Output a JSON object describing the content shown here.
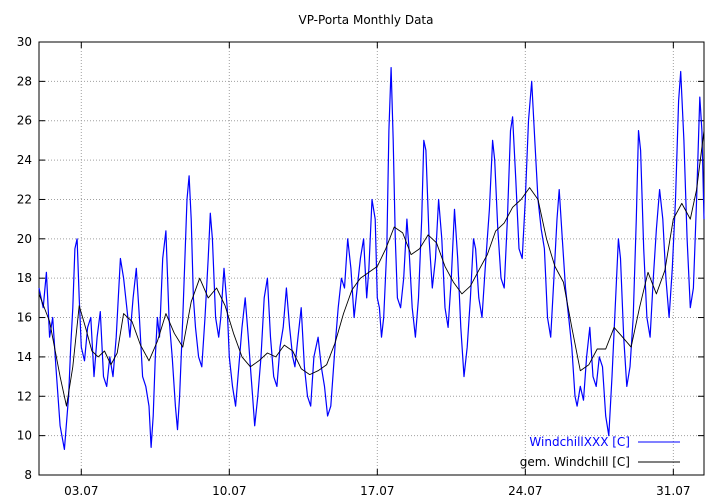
{
  "chart_data": {
    "type": "line",
    "title": "VP-Porta Monthly Data",
    "xlabel": "",
    "ylabel": "",
    "x_range_days": [
      1.0,
      32.45
    ],
    "ylim": [
      8,
      30
    ],
    "y_ticks": [
      8,
      10,
      12,
      14,
      16,
      18,
      20,
      22,
      24,
      26,
      28,
      30
    ],
    "x_ticks": [
      {
        "day": 3,
        "label": "03.07"
      },
      {
        "day": 10,
        "label": "10.07"
      },
      {
        "day": 17,
        "label": "17.07"
      },
      {
        "day": 24,
        "label": "24.07"
      },
      {
        "day": 31,
        "label": "31.07"
      }
    ],
    "grid": true,
    "legend_position": "bottom-right",
    "series": [
      {
        "name": "WindchillXXX [C]",
        "color": "#0000ff",
        "points": [
          [
            1.0,
            17.5
          ],
          [
            1.2,
            16.5
          ],
          [
            1.35,
            18.3
          ],
          [
            1.5,
            15.0
          ],
          [
            1.65,
            16.0
          ],
          [
            1.8,
            13.5
          ],
          [
            2.0,
            10.5
          ],
          [
            2.2,
            9.3
          ],
          [
            2.4,
            12.0
          ],
          [
            2.5,
            14.5
          ],
          [
            2.6,
            16.5
          ],
          [
            2.7,
            19.5
          ],
          [
            2.8,
            20.0
          ],
          [
            2.9,
            17.0
          ],
          [
            3.0,
            14.5
          ],
          [
            3.15,
            13.8
          ],
          [
            3.3,
            15.5
          ],
          [
            3.45,
            16.0
          ],
          [
            3.6,
            13.0
          ],
          [
            3.75,
            15.0
          ],
          [
            3.9,
            16.3
          ],
          [
            4.05,
            13.0
          ],
          [
            4.2,
            12.5
          ],
          [
            4.35,
            14.0
          ],
          [
            4.5,
            13.0
          ],
          [
            4.65,
            15.0
          ],
          [
            4.85,
            19.0
          ],
          [
            5.0,
            18.0
          ],
          [
            5.15,
            16.5
          ],
          [
            5.3,
            15.0
          ],
          [
            5.45,
            17.0
          ],
          [
            5.6,
            18.5
          ],
          [
            5.75,
            16.0
          ],
          [
            5.9,
            13.0
          ],
          [
            6.05,
            12.5
          ],
          [
            6.2,
            11.5
          ],
          [
            6.3,
            9.4
          ],
          [
            6.4,
            11.0
          ],
          [
            6.5,
            14.0
          ],
          [
            6.6,
            16.0
          ],
          [
            6.7,
            15.0
          ],
          [
            6.85,
            19.0
          ],
          [
            7.0,
            20.4
          ],
          [
            7.15,
            16.0
          ],
          [
            7.3,
            14.0
          ],
          [
            7.45,
            11.5
          ],
          [
            7.55,
            10.3
          ],
          [
            7.65,
            12.0
          ],
          [
            7.8,
            16.0
          ],
          [
            8.0,
            22.0
          ],
          [
            8.1,
            23.2
          ],
          [
            8.2,
            21.0
          ],
          [
            8.3,
            17.0
          ],
          [
            8.4,
            15.5
          ],
          [
            8.55,
            14.0
          ],
          [
            8.7,
            13.5
          ],
          [
            8.85,
            16.0
          ],
          [
            9.0,
            19.0
          ],
          [
            9.1,
            21.3
          ],
          [
            9.2,
            20.0
          ],
          [
            9.35,
            16.0
          ],
          [
            9.5,
            15.0
          ],
          [
            9.6,
            16.0
          ],
          [
            9.75,
            18.5
          ],
          [
            9.9,
            16.5
          ],
          [
            10.0,
            14.0
          ],
          [
            10.15,
            12.5
          ],
          [
            10.3,
            11.5
          ],
          [
            10.45,
            13.5
          ],
          [
            10.6,
            15.5
          ],
          [
            10.75,
            17.0
          ],
          [
            10.9,
            15.0
          ],
          [
            11.0,
            13.5
          ],
          [
            11.1,
            12.0
          ],
          [
            11.2,
            10.5
          ],
          [
            11.35,
            12.0
          ],
          [
            11.5,
            14.0
          ],
          [
            11.65,
            17.0
          ],
          [
            11.8,
            18.0
          ],
          [
            11.95,
            15.0
          ],
          [
            12.1,
            13.0
          ],
          [
            12.25,
            12.5
          ],
          [
            12.4,
            14.5
          ],
          [
            12.55,
            15.5
          ],
          [
            12.7,
            17.5
          ],
          [
            12.85,
            15.5
          ],
          [
            13.0,
            14.0
          ],
          [
            13.1,
            13.5
          ],
          [
            13.25,
            15.0
          ],
          [
            13.4,
            16.5
          ],
          [
            13.55,
            13.5
          ],
          [
            13.7,
            12.0
          ],
          [
            13.85,
            11.5
          ],
          [
            14.0,
            14.0
          ],
          [
            14.2,
            15.0
          ],
          [
            14.35,
            13.5
          ],
          [
            14.5,
            12.5
          ],
          [
            14.65,
            11.0
          ],
          [
            14.8,
            11.5
          ],
          [
            15.0,
            14.5
          ],
          [
            15.15,
            16.5
          ],
          [
            15.3,
            18.0
          ],
          [
            15.45,
            17.5
          ],
          [
            15.6,
            20.0
          ],
          [
            15.75,
            18.5
          ],
          [
            15.9,
            16.0
          ],
          [
            16.05,
            17.5
          ],
          [
            16.2,
            19.0
          ],
          [
            16.35,
            20.0
          ],
          [
            16.5,
            17.0
          ],
          [
            16.6,
            18.5
          ],
          [
            16.75,
            22.0
          ],
          [
            16.9,
            21.0
          ],
          [
            17.0,
            17.0
          ],
          [
            17.1,
            16.5
          ],
          [
            17.2,
            15.0
          ],
          [
            17.3,
            16.0
          ],
          [
            17.45,
            19.5
          ],
          [
            17.55,
            25.5
          ],
          [
            17.65,
            28.7
          ],
          [
            17.75,
            25.0
          ],
          [
            17.85,
            20.0
          ],
          [
            17.95,
            17.0
          ],
          [
            18.1,
            16.5
          ],
          [
            18.25,
            18.0
          ],
          [
            18.4,
            21.0
          ],
          [
            18.5,
            19.5
          ],
          [
            18.65,
            16.5
          ],
          [
            18.8,
            15.0
          ],
          [
            18.95,
            17.0
          ],
          [
            19.1,
            21.0
          ],
          [
            19.2,
            25.0
          ],
          [
            19.3,
            24.5
          ],
          [
            19.45,
            20.0
          ],
          [
            19.6,
            17.5
          ],
          [
            19.75,
            19.0
          ],
          [
            19.9,
            22.0
          ],
          [
            20.05,
            20.0
          ],
          [
            20.2,
            16.5
          ],
          [
            20.35,
            15.5
          ],
          [
            20.5,
            18.0
          ],
          [
            20.65,
            21.5
          ],
          [
            20.8,
            19.0
          ],
          [
            20.95,
            15.5
          ],
          [
            21.1,
            13.0
          ],
          [
            21.25,
            14.5
          ],
          [
            21.4,
            17.0
          ],
          [
            21.55,
            20.0
          ],
          [
            21.65,
            19.5
          ],
          [
            21.8,
            17.0
          ],
          [
            21.95,
            16.0
          ],
          [
            22.1,
            18.5
          ],
          [
            22.3,
            21.5
          ],
          [
            22.45,
            25.0
          ],
          [
            22.55,
            24.0
          ],
          [
            22.7,
            20.5
          ],
          [
            22.85,
            18.0
          ],
          [
            23.0,
            17.5
          ],
          [
            23.15,
            21.0
          ],
          [
            23.3,
            25.5
          ],
          [
            23.4,
            26.2
          ],
          [
            23.55,
            23.0
          ],
          [
            23.7,
            19.5
          ],
          [
            23.85,
            19.0
          ],
          [
            24.0,
            22.0
          ],
          [
            24.15,
            26.0
          ],
          [
            24.3,
            28.0
          ],
          [
            24.45,
            25.0
          ],
          [
            24.6,
            22.0
          ],
          [
            24.75,
            20.5
          ],
          [
            24.9,
            19.5
          ],
          [
            25.05,
            16.0
          ],
          [
            25.2,
            15.0
          ],
          [
            25.35,
            18.0
          ],
          [
            25.5,
            21.0
          ],
          [
            25.6,
            22.5
          ],
          [
            25.75,
            20.0
          ],
          [
            25.9,
            17.5
          ],
          [
            26.05,
            16.0
          ],
          [
            26.2,
            14.5
          ],
          [
            26.35,
            12.0
          ],
          [
            26.45,
            11.5
          ],
          [
            26.6,
            12.5
          ],
          [
            26.75,
            11.8
          ],
          [
            26.9,
            14.0
          ],
          [
            27.05,
            15.5
          ],
          [
            27.2,
            13.0
          ],
          [
            27.35,
            12.5
          ],
          [
            27.5,
            14.0
          ],
          [
            27.65,
            13.5
          ],
          [
            27.8,
            11.0
          ],
          [
            27.95,
            10.0
          ],
          [
            28.1,
            13.0
          ],
          [
            28.25,
            16.5
          ],
          [
            28.4,
            20.0
          ],
          [
            28.5,
            19.0
          ],
          [
            28.65,
            15.0
          ],
          [
            28.8,
            12.5
          ],
          [
            28.95,
            13.5
          ],
          [
            29.1,
            16.0
          ],
          [
            29.25,
            21.0
          ],
          [
            29.35,
            25.5
          ],
          [
            29.45,
            24.5
          ],
          [
            29.6,
            19.5
          ],
          [
            29.75,
            16.0
          ],
          [
            29.9,
            15.0
          ],
          [
            30.05,
            18.0
          ],
          [
            30.2,
            20.5
          ],
          [
            30.35,
            22.5
          ],
          [
            30.5,
            21.0
          ],
          [
            30.65,
            18.0
          ],
          [
            30.8,
            16.0
          ],
          [
            30.95,
            18.5
          ],
          [
            31.1,
            22.0
          ],
          [
            31.25,
            27.0
          ],
          [
            31.35,
            28.5
          ],
          [
            31.5,
            25.0
          ],
          [
            31.65,
            20.0
          ],
          [
            31.8,
            16.5
          ],
          [
            31.95,
            17.5
          ],
          [
            32.1,
            22.0
          ],
          [
            32.25,
            27.2
          ],
          [
            32.35,
            25.5
          ],
          [
            32.45,
            21.0
          ]
        ]
      },
      {
        "name": "gem. Windchill [C]",
        "color": "#000000",
        "points": [
          [
            1.0,
            17.2
          ],
          [
            1.5,
            15.8
          ],
          [
            2.0,
            13.0
          ],
          [
            2.3,
            11.5
          ],
          [
            2.6,
            13.5
          ],
          [
            2.9,
            16.6
          ],
          [
            3.2,
            15.5
          ],
          [
            3.5,
            14.3
          ],
          [
            3.8,
            14.0
          ],
          [
            4.1,
            14.3
          ],
          [
            4.4,
            13.6
          ],
          [
            4.7,
            14.2
          ],
          [
            5.0,
            16.2
          ],
          [
            5.4,
            15.8
          ],
          [
            5.8,
            14.6
          ],
          [
            6.2,
            13.8
          ],
          [
            6.6,
            14.8
          ],
          [
            7.0,
            16.2
          ],
          [
            7.4,
            15.2
          ],
          [
            7.8,
            14.5
          ],
          [
            8.2,
            16.8
          ],
          [
            8.6,
            18.0
          ],
          [
            9.0,
            17.0
          ],
          [
            9.4,
            17.5
          ],
          [
            9.8,
            16.6
          ],
          [
            10.2,
            15.2
          ],
          [
            10.6,
            14.0
          ],
          [
            11.0,
            13.5
          ],
          [
            11.4,
            13.8
          ],
          [
            11.8,
            14.2
          ],
          [
            12.2,
            14.0
          ],
          [
            12.6,
            14.6
          ],
          [
            13.0,
            14.3
          ],
          [
            13.4,
            13.4
          ],
          [
            13.8,
            13.1
          ],
          [
            14.2,
            13.3
          ],
          [
            14.6,
            13.6
          ],
          [
            15.0,
            14.7
          ],
          [
            15.4,
            16.2
          ],
          [
            15.8,
            17.4
          ],
          [
            16.2,
            18.0
          ],
          [
            16.6,
            18.3
          ],
          [
            17.0,
            18.6
          ],
          [
            17.4,
            19.5
          ],
          [
            17.8,
            20.6
          ],
          [
            18.2,
            20.3
          ],
          [
            18.6,
            19.2
          ],
          [
            19.0,
            19.5
          ],
          [
            19.4,
            20.2
          ],
          [
            19.8,
            19.8
          ],
          [
            20.2,
            18.6
          ],
          [
            20.6,
            17.8
          ],
          [
            21.0,
            17.2
          ],
          [
            21.4,
            17.6
          ],
          [
            21.8,
            18.4
          ],
          [
            22.2,
            19.2
          ],
          [
            22.6,
            20.4
          ],
          [
            23.0,
            20.8
          ],
          [
            23.4,
            21.6
          ],
          [
            23.8,
            22.0
          ],
          [
            24.2,
            22.6
          ],
          [
            24.6,
            22.0
          ],
          [
            25.0,
            20.0
          ],
          [
            25.4,
            18.6
          ],
          [
            25.8,
            17.8
          ],
          [
            26.2,
            15.5
          ],
          [
            26.6,
            13.3
          ],
          [
            27.0,
            13.6
          ],
          [
            27.4,
            14.4
          ],
          [
            27.8,
            14.4
          ],
          [
            28.2,
            15.5
          ],
          [
            28.6,
            15.0
          ],
          [
            29.0,
            14.5
          ],
          [
            29.4,
            16.5
          ],
          [
            29.8,
            18.3
          ],
          [
            30.2,
            17.2
          ],
          [
            30.6,
            18.4
          ],
          [
            31.0,
            21.0
          ],
          [
            31.4,
            21.8
          ],
          [
            31.8,
            21.0
          ],
          [
            32.1,
            22.5
          ],
          [
            32.45,
            25.5
          ]
        ]
      }
    ]
  }
}
